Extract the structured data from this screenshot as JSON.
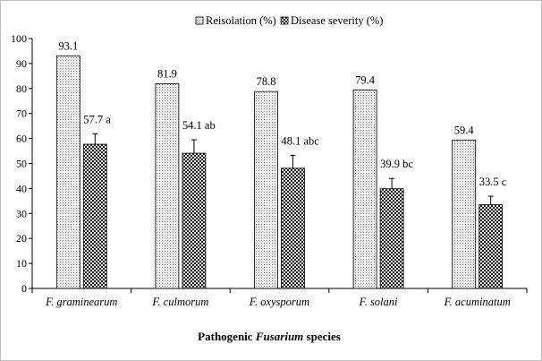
{
  "chart_data": {
    "type": "bar",
    "title": "",
    "xlabel_prefix": "Pathogenic ",
    "xlabel_italic": "Fusarium",
    "xlabel_suffix": " species",
    "ylabel": "",
    "ylim": [
      0,
      100
    ],
    "yticks": [
      0,
      10,
      20,
      30,
      40,
      50,
      60,
      70,
      80,
      90,
      100
    ],
    "grid": false,
    "legend_position": "top-center",
    "categories": [
      "F. graminearum",
      "F. culmorum",
      "F. oxysporum",
      "F. solani",
      "F. acuminatum"
    ],
    "series": [
      {
        "name": "Reisolation (%)",
        "pattern": "dotted",
        "values": [
          93.1,
          81.9,
          78.8,
          79.4,
          59.4
        ],
        "labels": [
          "93.1",
          "81.9",
          "78.8",
          "79.4",
          "59.4"
        ]
      },
      {
        "name": "Disease severity (%)",
        "pattern": "checkered",
        "values": [
          57.7,
          54.1,
          48.1,
          39.9,
          33.5
        ],
        "error": [
          4.2,
          5.4,
          5.2,
          4.1,
          3.4
        ],
        "labels": [
          "57.7 a",
          "54.1 ab",
          "48.1 abc",
          "39.9 bc",
          "33.5 c"
        ]
      }
    ]
  },
  "colors": {
    "axis": "#000000",
    "bar_edge": "#000000",
    "background": "#ffffff"
  }
}
